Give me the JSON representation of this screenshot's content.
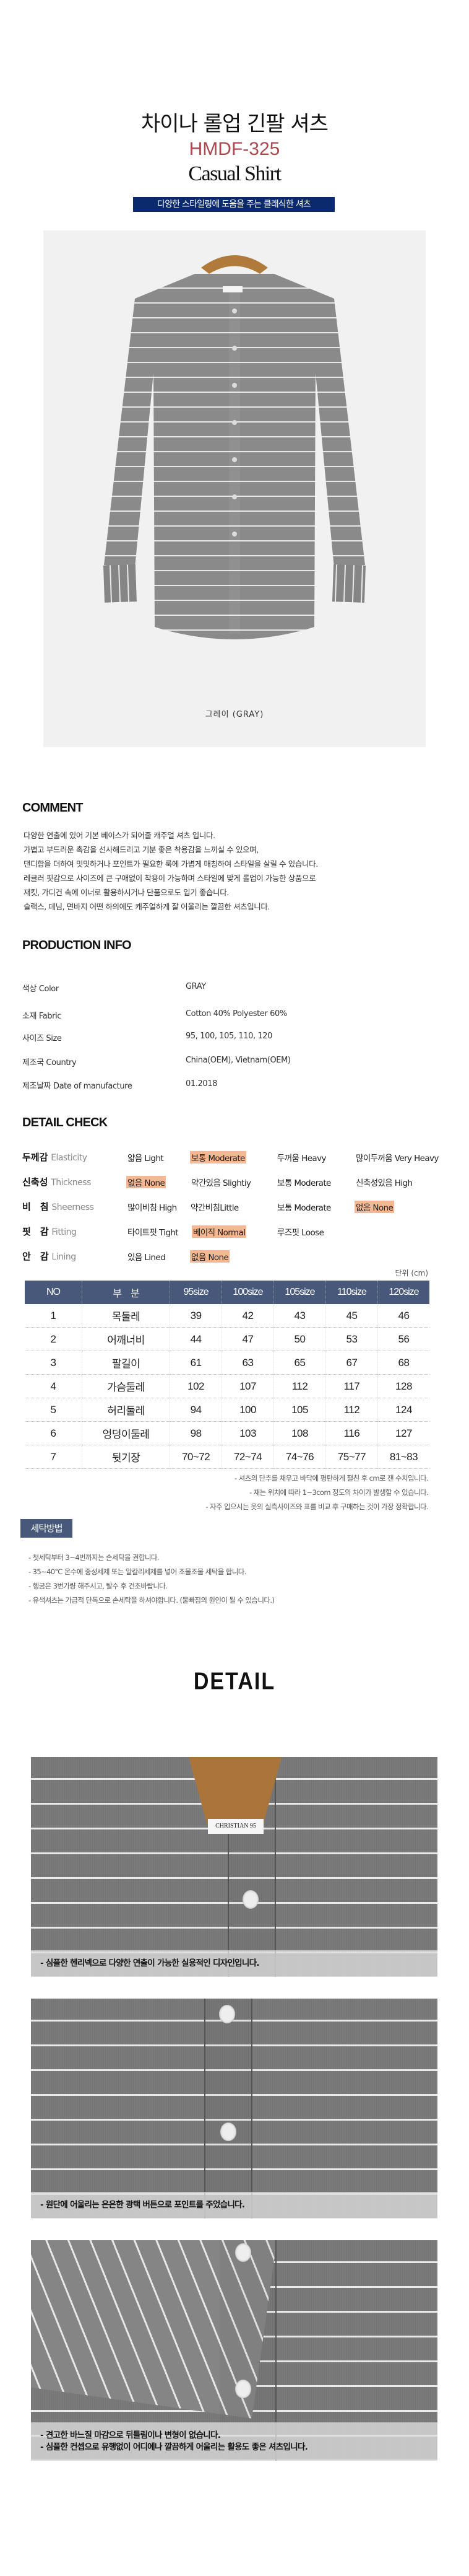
{
  "header": {
    "title": "차이나 롤업 긴팔 셔츠",
    "code": "HMDF-325",
    "subtitle": "Casual Shirt",
    "banner": "다양한 스타일링에 도움을 주는 클래식한 셔츠",
    "code_color": "#a84a4e",
    "banner_color": "#0b2a6e"
  },
  "hero": {
    "caption": "그레이 (GRAY)",
    "label_text": "CHRISTIAN 95"
  },
  "comment": {
    "heading": "COMMENT",
    "lines": [
      "다양한 연출에 있어 기본 베이스가 되어줄 캐주얼 셔츠 입니다.",
      "가볍고 부드러운 촉감을 선사해드리고 기분 좋은 착용감을 느끼실 수 있으며,",
      "댄디함을 더하여 밋밋하거나 포인트가 필요한 룩에 가볍게 매칭하여 스타일을 살릴 수 있습니다.",
      "레귤러 핏감으로 사이즈에 큰 구애없이 착용이 가능하며 스타일에 맞게 롤업이 가능한 상품으로",
      "재킷, 가디건 속에 이너로 활용하시거나 단품으로도 입기 좋습니다.",
      "슬랙스, 데님, 면바지 어떤 하의에도 캐주얼하게 잘 어울리는 깔끔한 셔츠입니다."
    ]
  },
  "production_info": {
    "heading": "PRODUCTION INFO",
    "rows": [
      {
        "label": "색상 Color",
        "value": "GRAY"
      },
      {
        "label": "소재 Fabric",
        "value": "Cotton 40% Polyester 60%"
      },
      {
        "label": "사이즈 Size",
        "value": "95, 100, 105, 110, 120"
      },
      {
        "label": "제조국 Country",
        "value": "China(OEM), Vietnam(OEM)"
      },
      {
        "label": "제조날짜  Date of manufacture",
        "value": "01.2018"
      }
    ]
  },
  "detail_check": {
    "heading": "DETAIL CHECK",
    "highlight_color": "#f5b893",
    "rows": [
      {
        "ko": "두께감",
        "en": "Elasticity",
        "options": [
          {
            "text": "얇음 Light",
            "selected": false
          },
          {
            "text": "보통 Moderate",
            "selected": true
          },
          {
            "text": "두꺼움 Heavy",
            "selected": false
          },
          {
            "text": "많이두꺼움 Very Heavy",
            "selected": false
          }
        ]
      },
      {
        "ko": "신축성",
        "en": "Thickness",
        "options": [
          {
            "text": "없음 None",
            "selected": true
          },
          {
            "text": "약간있음 Slightiy",
            "selected": false
          },
          {
            "text": "보통 Moderate",
            "selected": false
          },
          {
            "text": "신축성있음 High",
            "selected": false
          }
        ]
      },
      {
        "ko": "비　침",
        "en": "Sheerness",
        "options": [
          {
            "text": "많이비침 High",
            "selected": false
          },
          {
            "text": "약간비침Little",
            "selected": false
          },
          {
            "text": "보통 Moderate",
            "selected": false
          },
          {
            "text": "없음 None",
            "selected": true
          }
        ]
      },
      {
        "ko": "핏　감",
        "en": "Fitting",
        "options": [
          {
            "text": "타이트핏 Tight",
            "selected": false
          },
          {
            "text": "베이직 Normal",
            "selected": true
          },
          {
            "text": "루즈핏 Loose",
            "selected": false
          }
        ]
      },
      {
        "ko": "안　감",
        "en": "Lining",
        "options": [
          {
            "text": "있음 Lined",
            "selected": false
          },
          {
            "text": "없음 None",
            "selected": true
          }
        ]
      }
    ]
  },
  "size_table": {
    "unit": "단위 (cm)",
    "header_color": "#47587a",
    "columns": [
      "NO",
      "부　분",
      "95size",
      "100size",
      "105size",
      "110size",
      "120size"
    ],
    "rows": [
      [
        "1",
        "목둘레",
        "39",
        "42",
        "43",
        "45",
        "46"
      ],
      [
        "2",
        "어깨너비",
        "44",
        "47",
        "50",
        "53",
        "56"
      ],
      [
        "3",
        "팔길이",
        "61",
        "63",
        "65",
        "67",
        "68"
      ],
      [
        "4",
        "가슴둘레",
        "102",
        "107",
        "112",
        "117",
        "128"
      ],
      [
        "5",
        "허리둘레",
        "94",
        "100",
        "105",
        "112",
        "124"
      ],
      [
        "6",
        "엉덩이둘레",
        "98",
        "103",
        "108",
        "116",
        "127"
      ],
      [
        "7",
        "뒷기장",
        "70~72",
        "72~74",
        "74~76",
        "75~77",
        "81~83"
      ]
    ],
    "notes": [
      "- 셔츠의 단추를 채우고 바닥에 평탄하게 펼친 후 cm로 잰 수치입니다.",
      "- 재는 위치에 따라 1~3com 정도의 차이가 발생할 수 있습니다.",
      "- 자주 입으시는 옷의 실측사이즈와 표를 비교 후 구매하는 것이 가장 정확합니다."
    ]
  },
  "washing": {
    "badge": "세탁방법",
    "lines": [
      "- 첫세탁부터 3~4번까지는 손세탁을 권합니다.",
      "- 35~40℃ 온수에 중성세제 또는 알칼리세제를 넣어 조물조물 세탁을 합니다.",
      "- 헹굼은 3번가량 해주시고, 탈수 후 건조바랍니다.",
      "- 유색셔츠는 가급적 단독으로 손세탁을 하셔야합니다. (물빠짐의 원인이 될 수 있습니다.)"
    ]
  },
  "detail": {
    "heading": "DETAIL",
    "images": [
      {
        "captions": [
          "- 심플한 헨리넥으로 다양한 연출이 가능한 실용적인 디자인입니다."
        ]
      },
      {
        "captions": [
          "- 원단에 어울리는 은은한 광택 버튼으로 포인트를 주었습니다."
        ]
      },
      {
        "captions": [
          "- 견고한 바느질 마감으로 뒤틀림이나 변형이 없습니다.",
          "- 심플한 컨셉으로 유행없이 어디에나 깔끔하게 어울리는 활용도 좋은 셔츠입니다."
        ]
      }
    ]
  }
}
